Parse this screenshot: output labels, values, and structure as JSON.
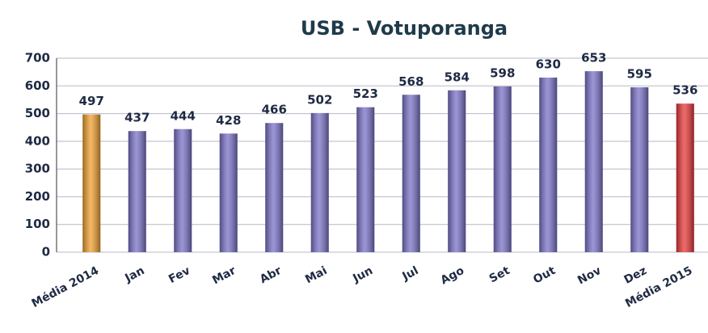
{
  "chart_data": {
    "type": "bar",
    "title": "USB - Votuporanga",
    "categories": [
      "Média 2014",
      "Jan",
      "Fev",
      "Mar",
      "Abr",
      "Mai",
      "Jun",
      "Jul",
      "Ago",
      "Set",
      "Out",
      "Nov",
      "Dez",
      "Média 2015"
    ],
    "values": [
      497,
      437,
      444,
      428,
      466,
      502,
      523,
      568,
      584,
      598,
      630,
      653,
      595,
      536
    ],
    "colors": [
      "#f0a030",
      "#7a72c8",
      "#7a72c8",
      "#7a72c8",
      "#7a72c8",
      "#7a72c8",
      "#7a72c8",
      "#7a72c8",
      "#7a72c8",
      "#7a72c8",
      "#7a72c8",
      "#7a72c8",
      "#7a72c8",
      "#e83838"
    ],
    "ylim": [
      0,
      700
    ],
    "yticks": [
      0,
      100,
      200,
      300,
      400,
      500,
      600,
      700
    ],
    "grid": true
  }
}
